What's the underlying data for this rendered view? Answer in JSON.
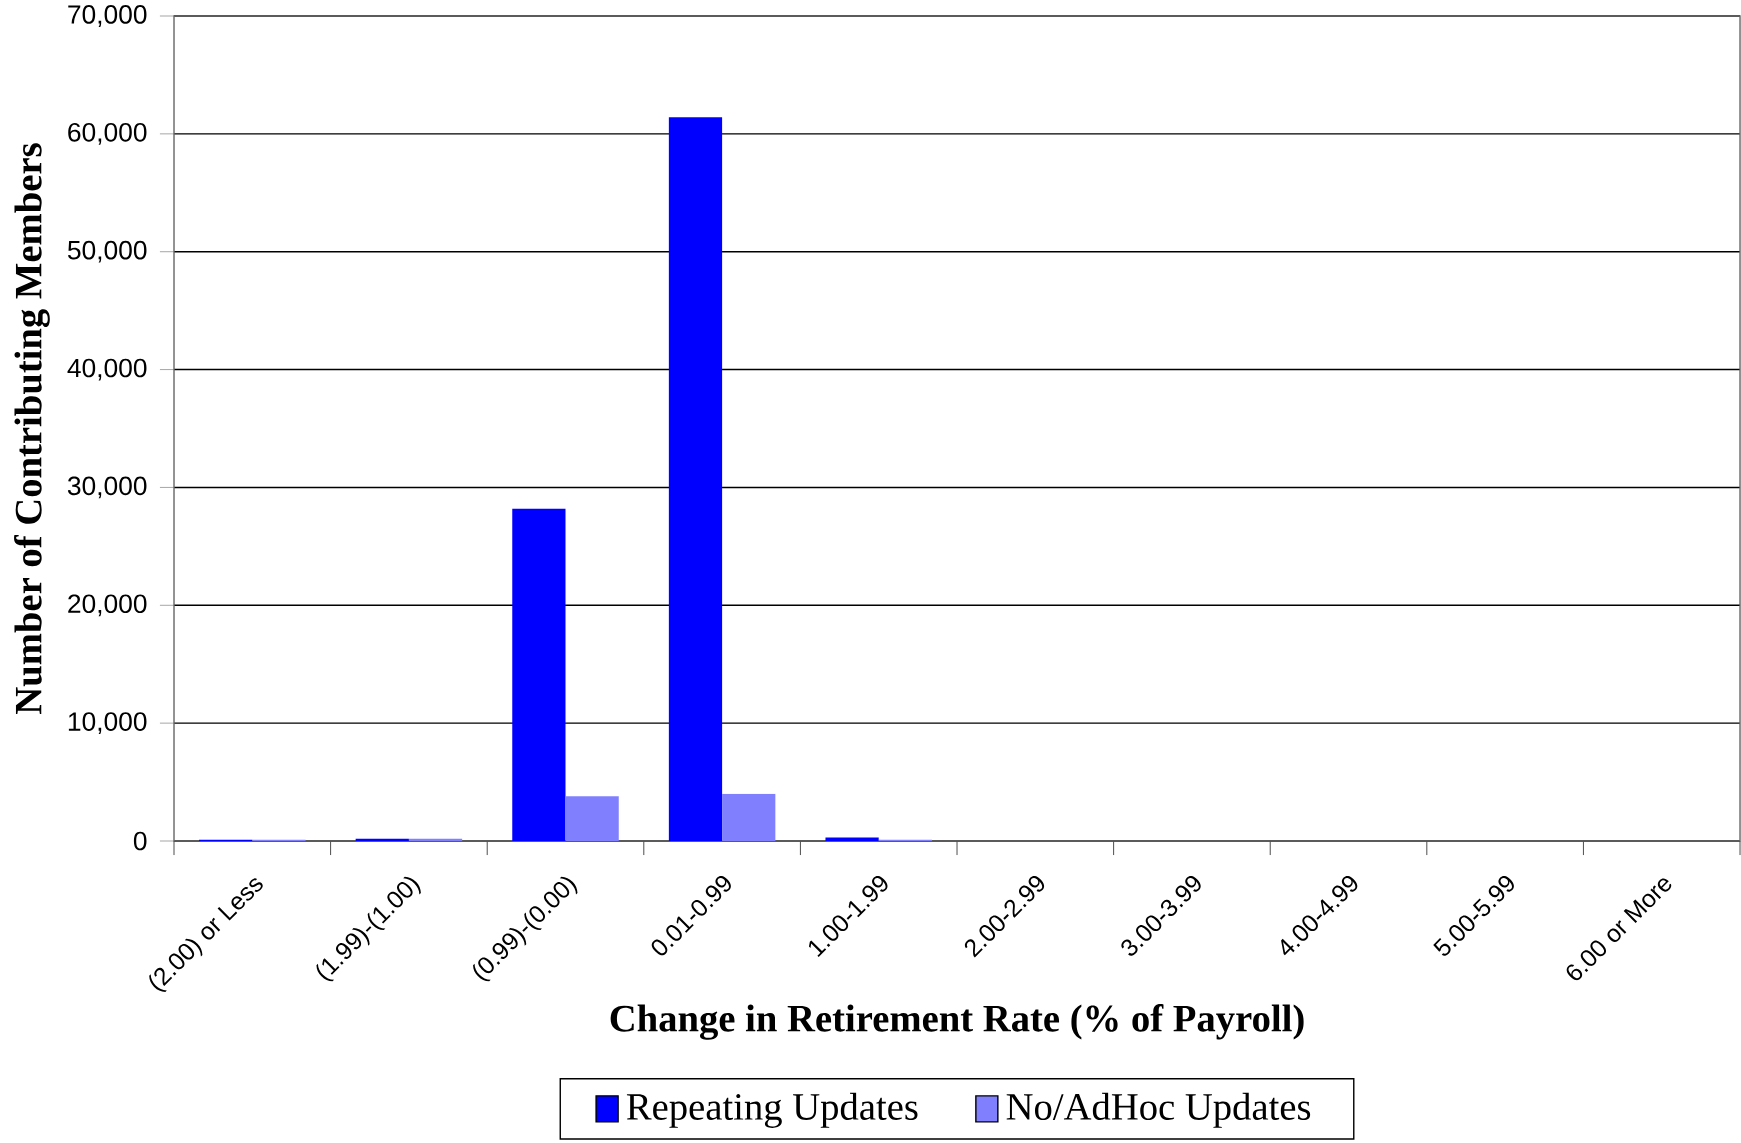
{
  "chart_data": {
    "type": "bar",
    "xlabel": "Change in Retirement Rate (% of Payroll)",
    "ylabel": "Number of Contributing Members",
    "categories": [
      "(2.00) or Less",
      "(1.99)-(1.00)",
      "(0.99)-(0.00)",
      "0.01-0.99",
      "1.00-1.99",
      "2.00-2.99",
      "3.00-3.99",
      "4.00-4.99",
      "5.00-5.99",
      "6.00 or More"
    ],
    "series": [
      {
        "name": "Repeating Updates",
        "color": "#0000ff",
        "values": [
          100,
          200,
          28200,
          61400,
          300,
          0,
          0,
          0,
          0,
          0
        ]
      },
      {
        "name": "No/AdHoc Updates",
        "color": "#8080ff",
        "values": [
          100,
          200,
          3800,
          4000,
          100,
          0,
          0,
          0,
          0,
          0
        ]
      }
    ],
    "ylim": [
      0,
      70000
    ],
    "yticks": [
      {
        "value": 0,
        "label": "0"
      },
      {
        "value": 10000,
        "label": "10,000"
      },
      {
        "value": 20000,
        "label": "20,000"
      },
      {
        "value": 30000,
        "label": "30,000"
      },
      {
        "value": 40000,
        "label": "40,000"
      },
      {
        "value": 50000,
        "label": "50,000"
      },
      {
        "value": 60000,
        "label": "60,000"
      },
      {
        "value": 70000,
        "label": "70,000"
      }
    ],
    "grid": "y",
    "legend": "bottom"
  }
}
